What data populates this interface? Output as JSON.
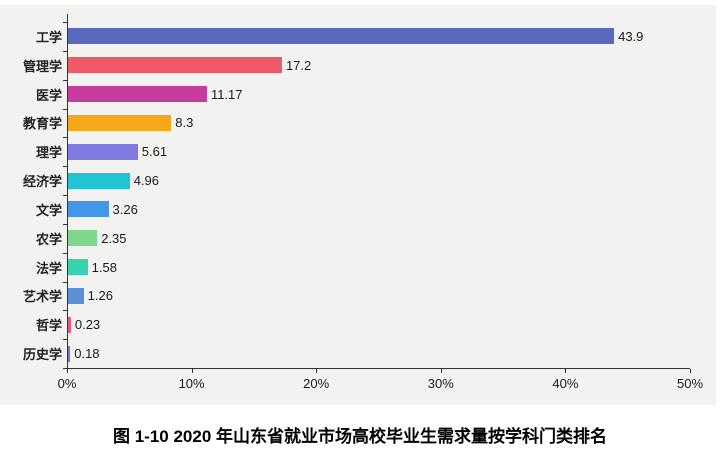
{
  "caption": "图 1-10 2020 年山东省就业市场高校毕业生需求量按学科门类排名",
  "colors": {
    "panel_bg": "#f2f2f1",
    "axis": "#333333",
    "label_text": "#222222",
    "value_text": "#1a1a1a"
  },
  "chart_data": {
    "type": "bar",
    "orientation": "horizontal",
    "title": "",
    "xlabel": "",
    "ylabel": "",
    "xlim": [
      0,
      50
    ],
    "grid": false,
    "legend": false,
    "categories": [
      "工学",
      "管理学",
      "医学",
      "教育学",
      "理学",
      "经济学",
      "文学",
      "农学",
      "法学",
      "艺术学",
      "哲学",
      "历史学"
    ],
    "values": [
      43.9,
      17.2,
      11.17,
      8.3,
      5.61,
      4.96,
      3.26,
      2.35,
      1.58,
      1.26,
      0.23,
      0.18
    ],
    "value_labels": [
      "43.9",
      "17.2",
      "11.17",
      "8.3",
      "5.61",
      "4.96",
      "3.26",
      "2.35",
      "1.58",
      "1.26",
      "0.23",
      "0.18"
    ],
    "bar_colors": [
      "#5a68be",
      "#ee5a68",
      "#c83c9e",
      "#f6a81c",
      "#7e7ae0",
      "#20c4d2",
      "#4397e8",
      "#7ed88c",
      "#38d2ae",
      "#5c90d6",
      "#ec558c",
      "#8070cc"
    ],
    "x_ticks": [
      "0%",
      "10%",
      "20%",
      "30%",
      "40%",
      "50%"
    ],
    "x_tick_values": [
      0,
      10,
      20,
      30,
      40,
      50
    ]
  }
}
